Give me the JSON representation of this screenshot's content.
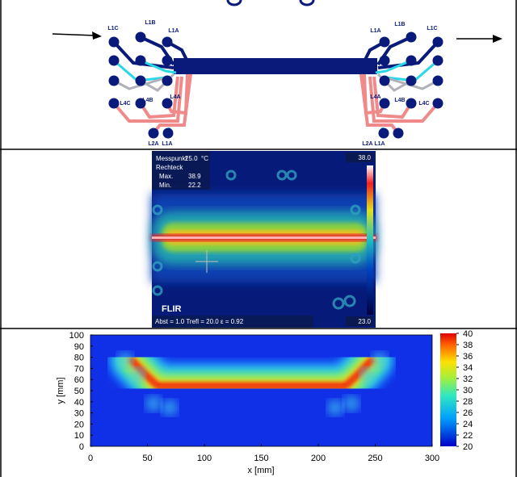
{
  "pcb": {
    "left_labels": [
      "L1C",
      "L1B",
      "L1A",
      "L4C",
      "L4B",
      "L4A",
      "L2A",
      "L1A"
    ],
    "right_labels": [
      "L1A",
      "L1B",
      "L1C",
      "L4A",
      "L4B",
      "L4C",
      "L2A",
      "L1A"
    ]
  },
  "thermal": {
    "measure_label": "Messpunkt",
    "measure_value": "25.0",
    "unit": "°C",
    "mode": "Rechteck",
    "max_label": "Max.",
    "max_value": "38.9",
    "min_label": "Min.",
    "min_value": "22.2",
    "scale_max": "38.0",
    "scale_min": "23.0",
    "brand": "FLIR",
    "params": "Abst = 1.0  Trefl = 20.0  ε = 0.92"
  },
  "chart_data": {
    "type": "heatmap",
    "xlabel": "x [mm]",
    "ylabel": "y [mm]",
    "xlim": [
      0,
      300
    ],
    "ylim": [
      0,
      100
    ],
    "xticks": [
      0,
      50,
      100,
      150,
      200,
      250,
      300
    ],
    "yticks": [
      0,
      10,
      20,
      30,
      40,
      50,
      60,
      70,
      80,
      90,
      100
    ],
    "colorbar_lim": [
      20,
      40
    ],
    "colorbar_ticks": [
      20,
      22,
      24,
      26,
      28,
      30,
      32,
      34,
      36,
      38,
      40
    ]
  }
}
